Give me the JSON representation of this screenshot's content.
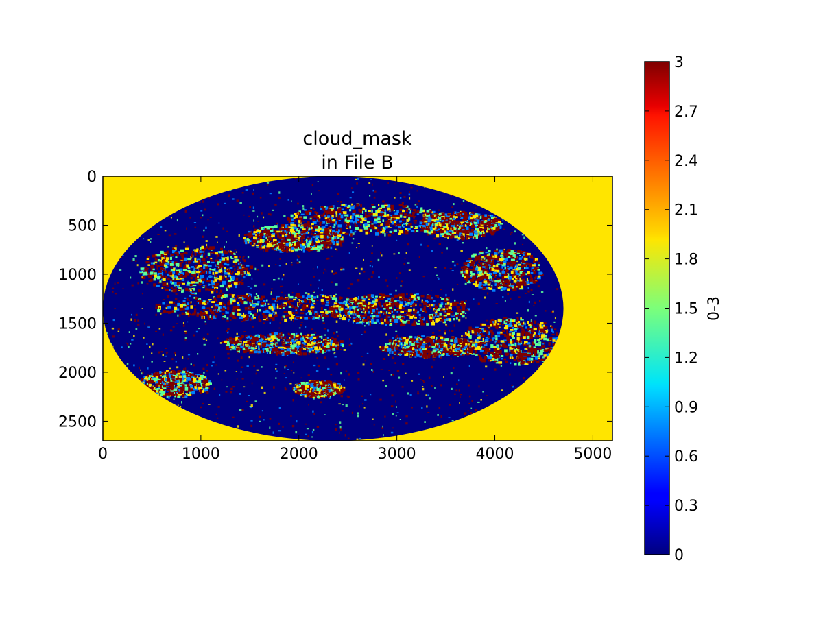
{
  "chart_data": {
    "type": "heatmap",
    "title": "cloud_mask\nin File B",
    "title_lines": [
      "cloud_mask",
      "in File B"
    ],
    "xlabel": "",
    "ylabel": "",
    "xlim": [
      0,
      5200
    ],
    "ylim": [
      2700,
      0
    ],
    "xticks": [
      0,
      1000,
      2000,
      3000,
      4000,
      5000
    ],
    "yticks": [
      0,
      500,
      1000,
      1500,
      2000,
      2500
    ],
    "grid": false,
    "colormap": "jet",
    "colorbar": {
      "label": "0-3",
      "range": [
        0,
        3
      ],
      "ticks": [
        "3",
        "2.7",
        "2.4",
        "2.1",
        "1.8",
        "1.5",
        "1.2",
        "0.9",
        "0.6",
        "0.3",
        "0"
      ],
      "tick_values": [
        3,
        2.7,
        2.4,
        2.1,
        1.8,
        1.5,
        1.2,
        0.9,
        0.6,
        0.3,
        0
      ]
    },
    "background_value": 2,
    "disk": {
      "shape": "ellipse",
      "x_extent": [
        0,
        4700
      ],
      "y_extent": [
        0,
        2700
      ],
      "dominant_value": 0
    },
    "categories": [
      0,
      1,
      2,
      3
    ],
    "colors": {
      "0": "#00007f",
      "1": "#0080ff",
      "2": "#ffe500",
      "3": "#7f0000"
    }
  }
}
